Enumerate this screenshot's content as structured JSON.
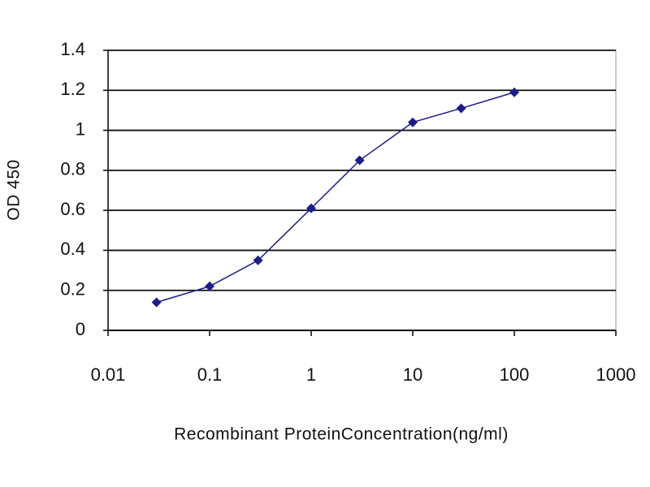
{
  "chart_data": {
    "type": "line",
    "x_label": "Recombinant ProteinConcentration(ng/ml)",
    "y_label": "OD 450",
    "x": [
      0.03,
      0.1,
      0.3,
      1,
      3,
      10,
      30,
      100
    ],
    "series": [
      {
        "color": "#1c1c8a",
        "values": [
          0.14,
          0.22,
          0.35,
          0.61,
          0.85,
          1.04,
          1.11,
          1.19
        ]
      }
    ],
    "xscale": "log",
    "xlim": [
      0.01,
      1000
    ],
    "xticks": [
      0.01,
      0.1,
      1,
      10,
      100,
      1000
    ],
    "ylim": [
      0,
      1.4
    ],
    "yticks": [
      0,
      0.2,
      0.4,
      0.6,
      0.8,
      1,
      1.2,
      1.4
    ],
    "grid": true
  }
}
